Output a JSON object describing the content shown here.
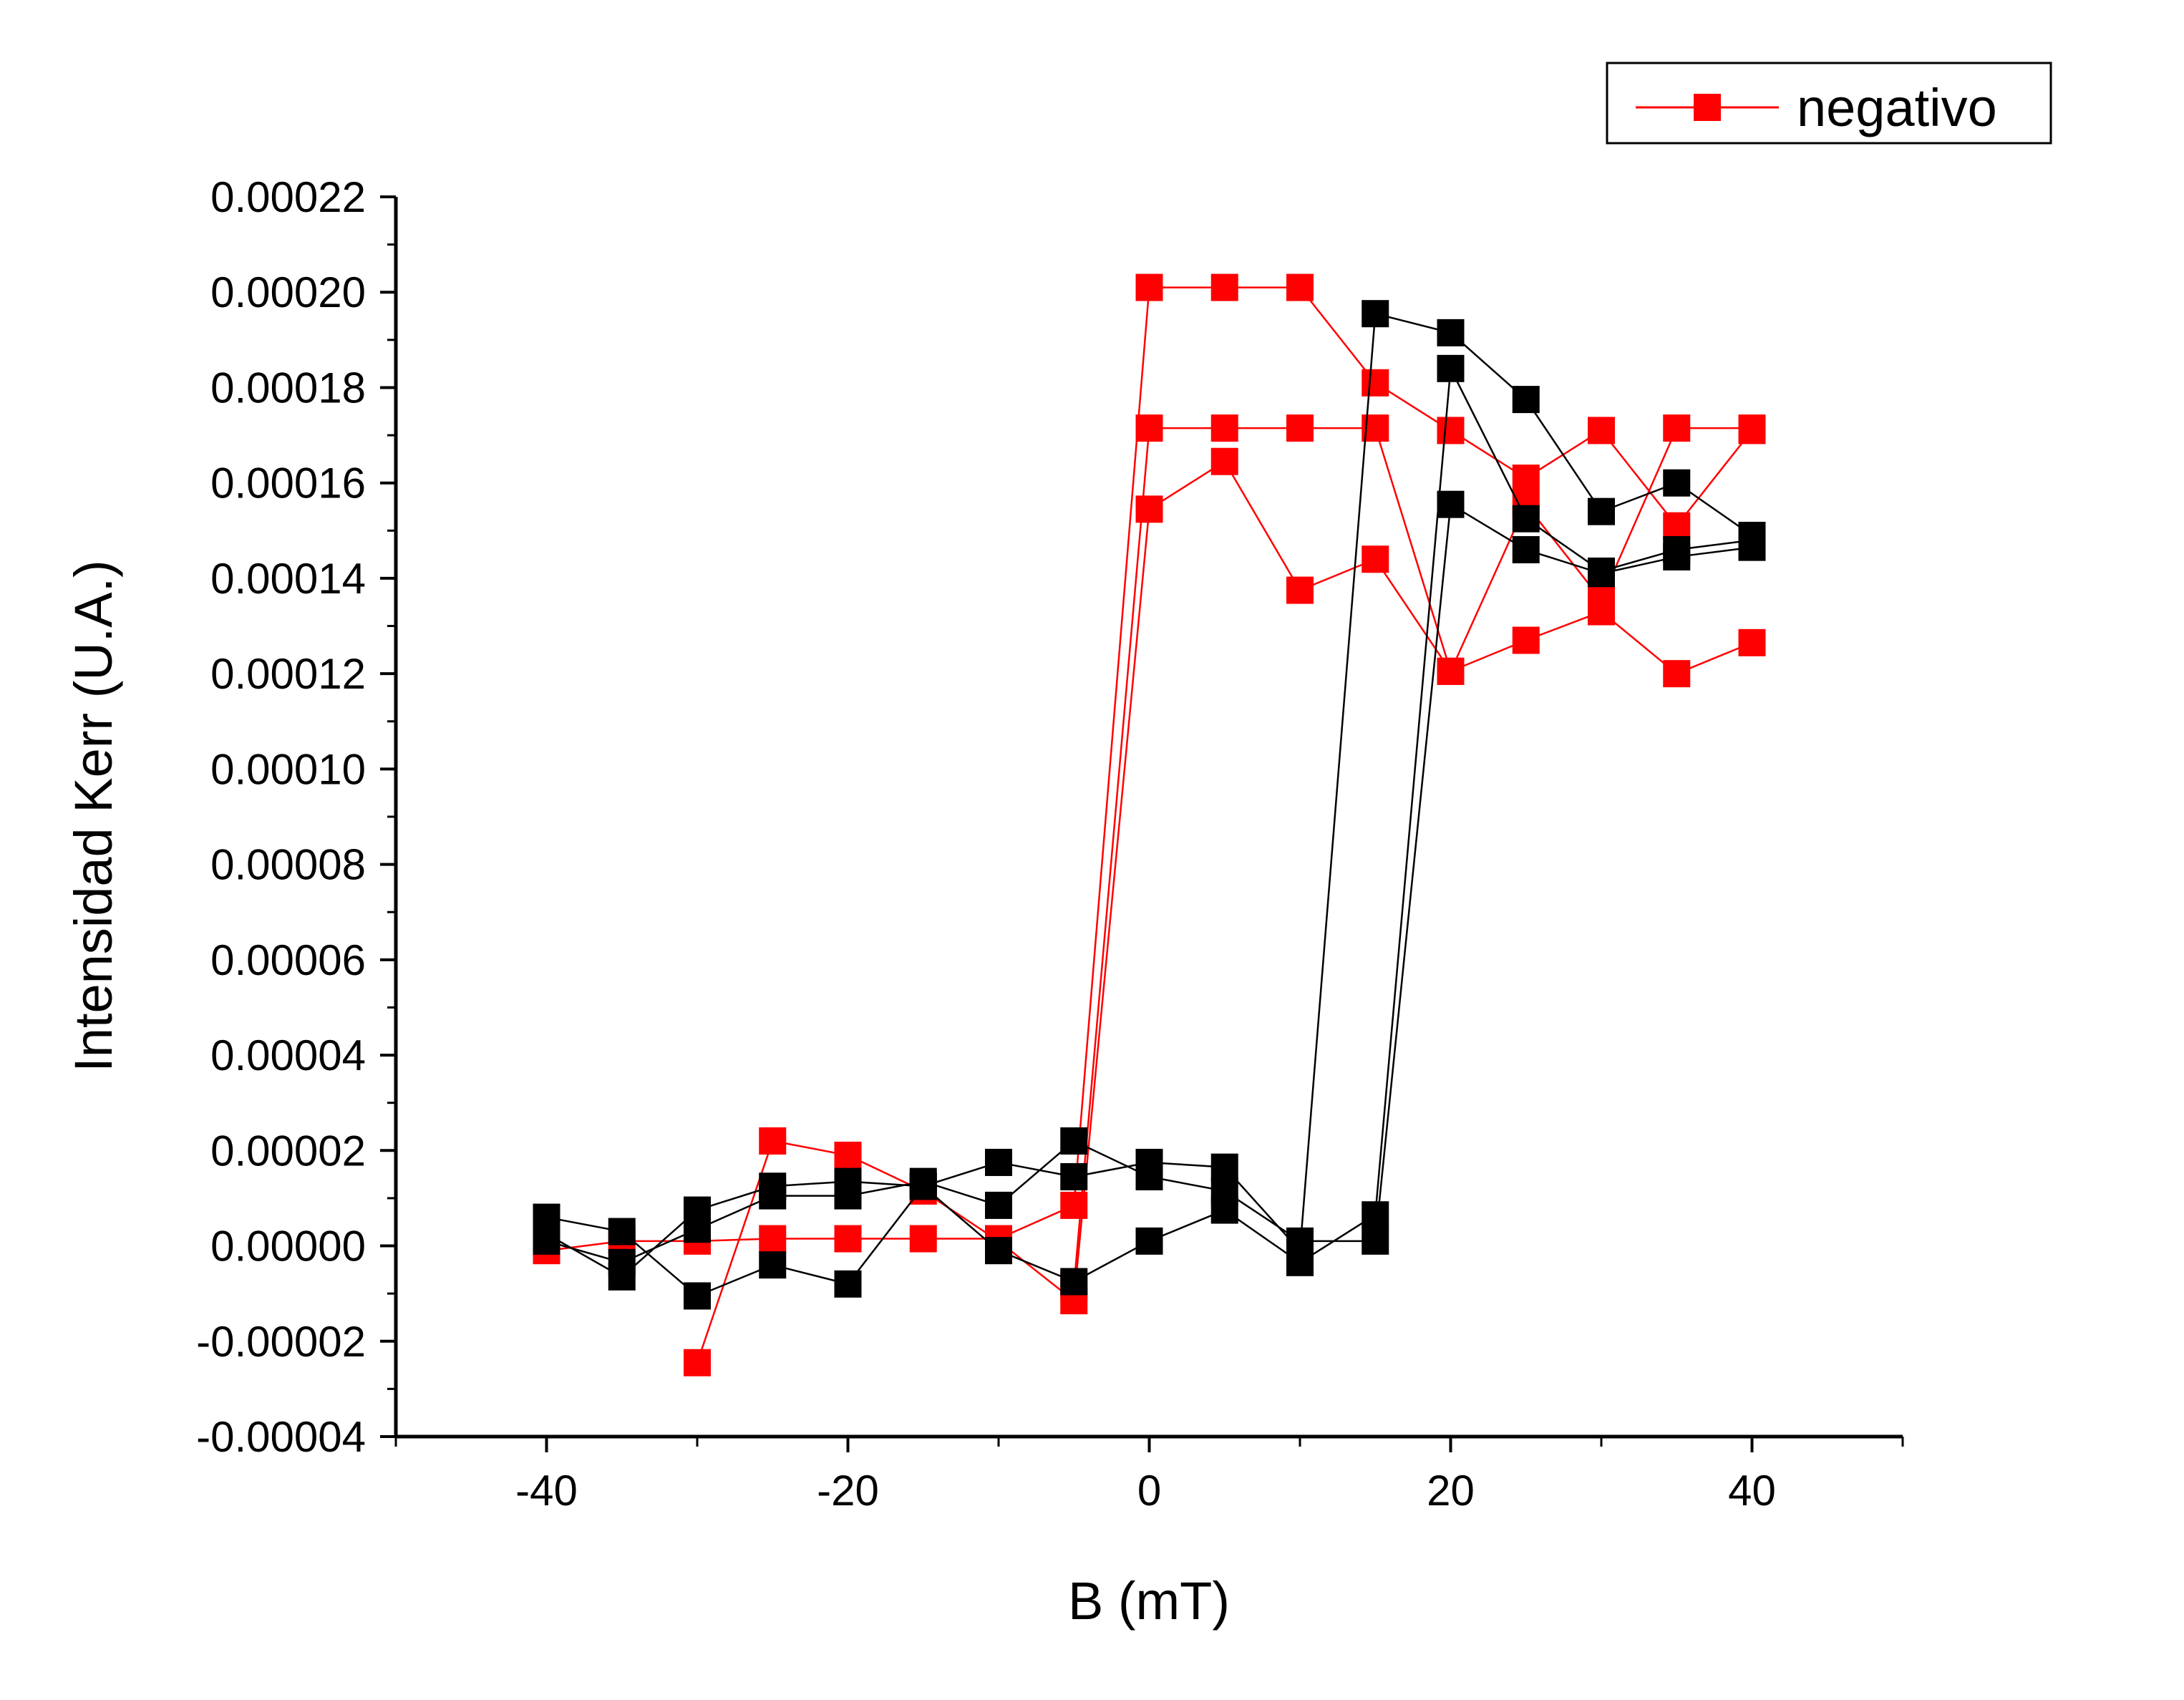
{
  "chart_data": {
    "type": "line",
    "xlabel": "B (mT)",
    "ylabel": "Intensidad Kerr (U.A.)",
    "xlim": [
      -50,
      50
    ],
    "ylim": [
      -4e-05,
      0.00022
    ],
    "x_ticks": [
      -40,
      -20,
      0,
      20,
      40
    ],
    "x_tick_labels": [
      "-40",
      "-20",
      "0",
      "20",
      "40"
    ],
    "y_ticks": [
      -4e-05,
      -2e-05,
      0,
      2e-05,
      4e-05,
      6e-05,
      8e-05,
      0.0001,
      0.00012,
      0.00014,
      0.00016,
      0.00018,
      0.0002,
      0.00022
    ],
    "y_tick_labels": [
      "-0.00004",
      "-0.00002",
      "0.00000",
      "0.00002",
      "0.00004",
      "0.00006",
      "0.00008",
      "0.00010",
      "0.00012",
      "0.00014",
      "0.00016",
      "0.00018",
      "0.00020",
      "0.00022"
    ],
    "grid": false,
    "legend": {
      "position": "top-right",
      "entries": [
        {
          "label": "negativo",
          "color": "#ff0000",
          "marker": "square"
        }
      ]
    },
    "series": [
      {
        "name": "negativo",
        "color": "#ff0000",
        "x": [
          -40,
          -35,
          -30,
          -25,
          -20,
          -15,
          -10,
          -5,
          0,
          5,
          10,
          15,
          20,
          25,
          30,
          35,
          40
        ],
        "y": [
          -1e-06,
          1e-06,
          1e-06,
          1.5e-06,
          1.5e-06,
          1.5e-06,
          1.5e-06,
          8.5e-06,
          0.000201,
          0.000201,
          0.000201,
          0.000181,
          0.000171,
          0.000161,
          0.000171,
          0.000151,
          0.000171
        ]
      },
      {
        "color": "#ff0000",
        "x": [
          -30,
          -25,
          -20,
          -15,
          -10,
          -5,
          0,
          5,
          10,
          15,
          20,
          25,
          30,
          35,
          40
        ],
        "y": [
          -2.45e-05,
          2.2e-05,
          1.9e-05,
          1.15e-05,
          1e-06,
          -1.15e-05,
          0.0001545,
          0.0001645,
          0.0001375,
          0.000144,
          0.0001205,
          0.000127,
          0.000133,
          0.00012,
          0.0001265
        ]
      },
      {
        "color": "#ff0000",
        "x": [
          -5,
          0,
          5,
          10,
          15,
          20,
          25,
          30,
          35,
          40
        ],
        "y": [
          -8.5e-06,
          0.0001715,
          0.0001715,
          0.0001715,
          0.0001715,
          0.0001205,
          0.0001555,
          0.0001355,
          0.0001715,
          0.0001715
        ]
      },
      {
        "color": "#000000",
        "x": [
          -40,
          -35,
          -30,
          -25,
          -20,
          -15,
          -10,
          -5,
          0,
          5,
          10,
          15,
          20,
          25,
          30,
          35,
          40
        ],
        "y": [
          6e-06,
          3e-06,
          -1.05e-05,
          -4e-06,
          -8e-06,
          1.25e-05,
          1.75e-05,
          1.45e-05,
          1.75e-05,
          1.65e-05,
          -1e-06,
          0.0001955,
          0.0001915,
          0.0001775,
          0.000154,
          0.00016,
          0.000149
        ]
      },
      {
        "color": "#000000",
        "x": [
          -40,
          -35,
          -30,
          -25,
          -20,
          -15,
          -10,
          -5,
          0,
          5,
          10,
          15,
          20,
          25,
          30,
          35,
          40
        ],
        "y": [
          2.5e-06,
          -6.5e-06,
          7.5e-06,
          1.25e-05,
          1.35e-05,
          1.25e-05,
          -1e-06,
          -7.5e-06,
          1e-06,
          7.5e-06,
          -3.5e-06,
          6.5e-06,
          0.000184,
          0.0001525,
          0.0001415,
          0.000146,
          0.000148
        ]
      },
      {
        "color": "#000000",
        "x": [
          -40,
          -35,
          -30,
          -25,
          -20,
          -15,
          -10,
          -5,
          0,
          5,
          10,
          15,
          20,
          25,
          30,
          35,
          40
        ],
        "y": [
          1e-06,
          -3.5e-06,
          3.5e-06,
          1.05e-05,
          1.05e-05,
          1.35e-05,
          8.5e-06,
          2.2e-05,
          1.45e-05,
          1.15e-05,
          1e-06,
          1e-06,
          0.0001555,
          0.000146,
          0.000141,
          0.0001445,
          0.0001465
        ]
      }
    ]
  }
}
